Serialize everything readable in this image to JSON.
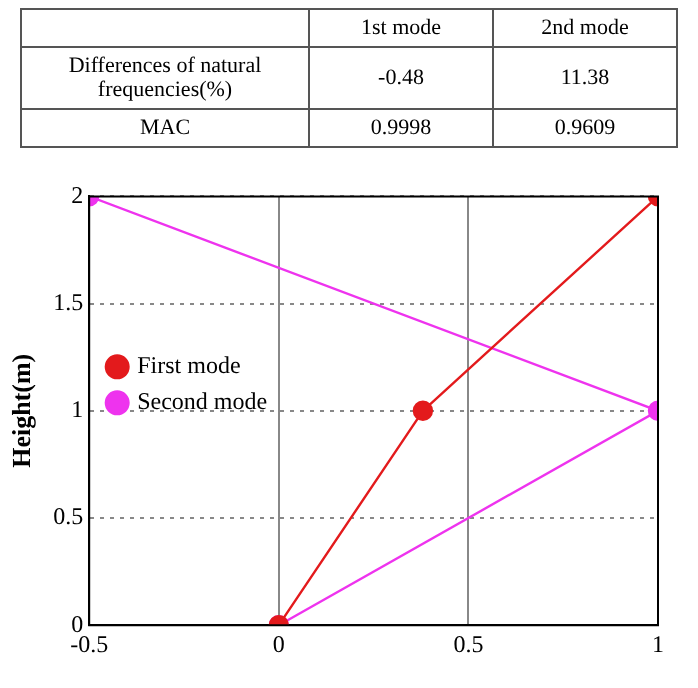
{
  "chart_data": [
    {
      "type": "other",
      "annotations": [
        "1st mode",
        "2nd mode",
        "Differences of natural frequencies(%)",
        "-0.48",
        "11.38",
        "MAC",
        "0.9998",
        "0.9609"
      ]
    },
    {
      "type": "line",
      "ylabel": "Height(m)",
      "xlim": [
        -0.5,
        1
      ],
      "xticks": [
        -0.5,
        0,
        0.5,
        1
      ],
      "ylim": [
        0,
        2
      ],
      "yticks": [
        0,
        0.5,
        1,
        1.5,
        2
      ],
      "grid": true,
      "legend": "left",
      "marker": "circle",
      "line_style": "solid",
      "series": [
        {
          "name": "First mode",
          "color": "#e31a1c",
          "x": [
            0,
            0.38,
            1
          ],
          "values": [
            0,
            1,
            2
          ]
        },
        {
          "name": "Second mode",
          "color": "#ee33ee",
          "x": [
            0,
            1,
            -0.5
          ],
          "values": [
            0,
            1,
            2
          ]
        }
      ]
    }
  ]
}
